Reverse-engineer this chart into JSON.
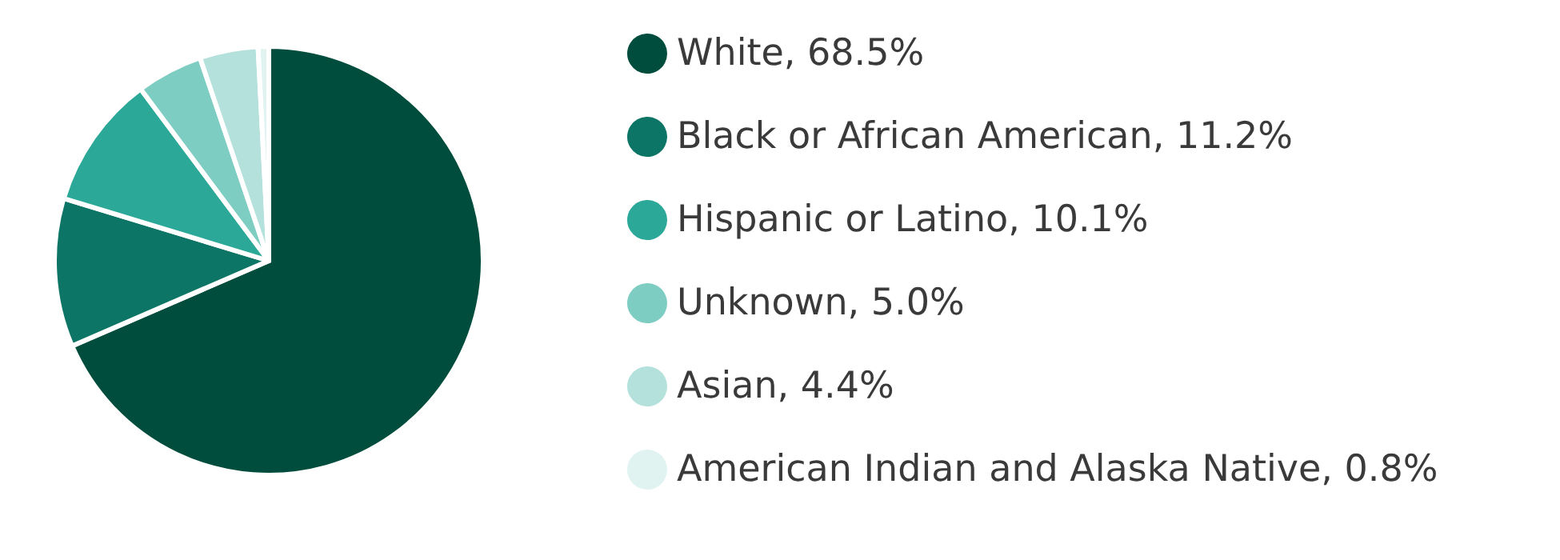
{
  "chart_data": {
    "type": "pie",
    "categories": [
      "White, 68.5%",
      "Black or African American, 11.2%",
      "Hispanic or Latino, 10.1%",
      "Unknown, 5.0%",
      "Asian, 4.4%",
      "American Indian and Alaska Native, 0.8%"
    ],
    "values": [
      68.5,
      11.2,
      10.1,
      5.0,
      4.4,
      0.8
    ],
    "colors": [
      "#004d3d",
      "#0d7565",
      "#2ba898",
      "#7ecdc2",
      "#b4e1db",
      "#e1f3f1"
    ],
    "legend": "right"
  }
}
